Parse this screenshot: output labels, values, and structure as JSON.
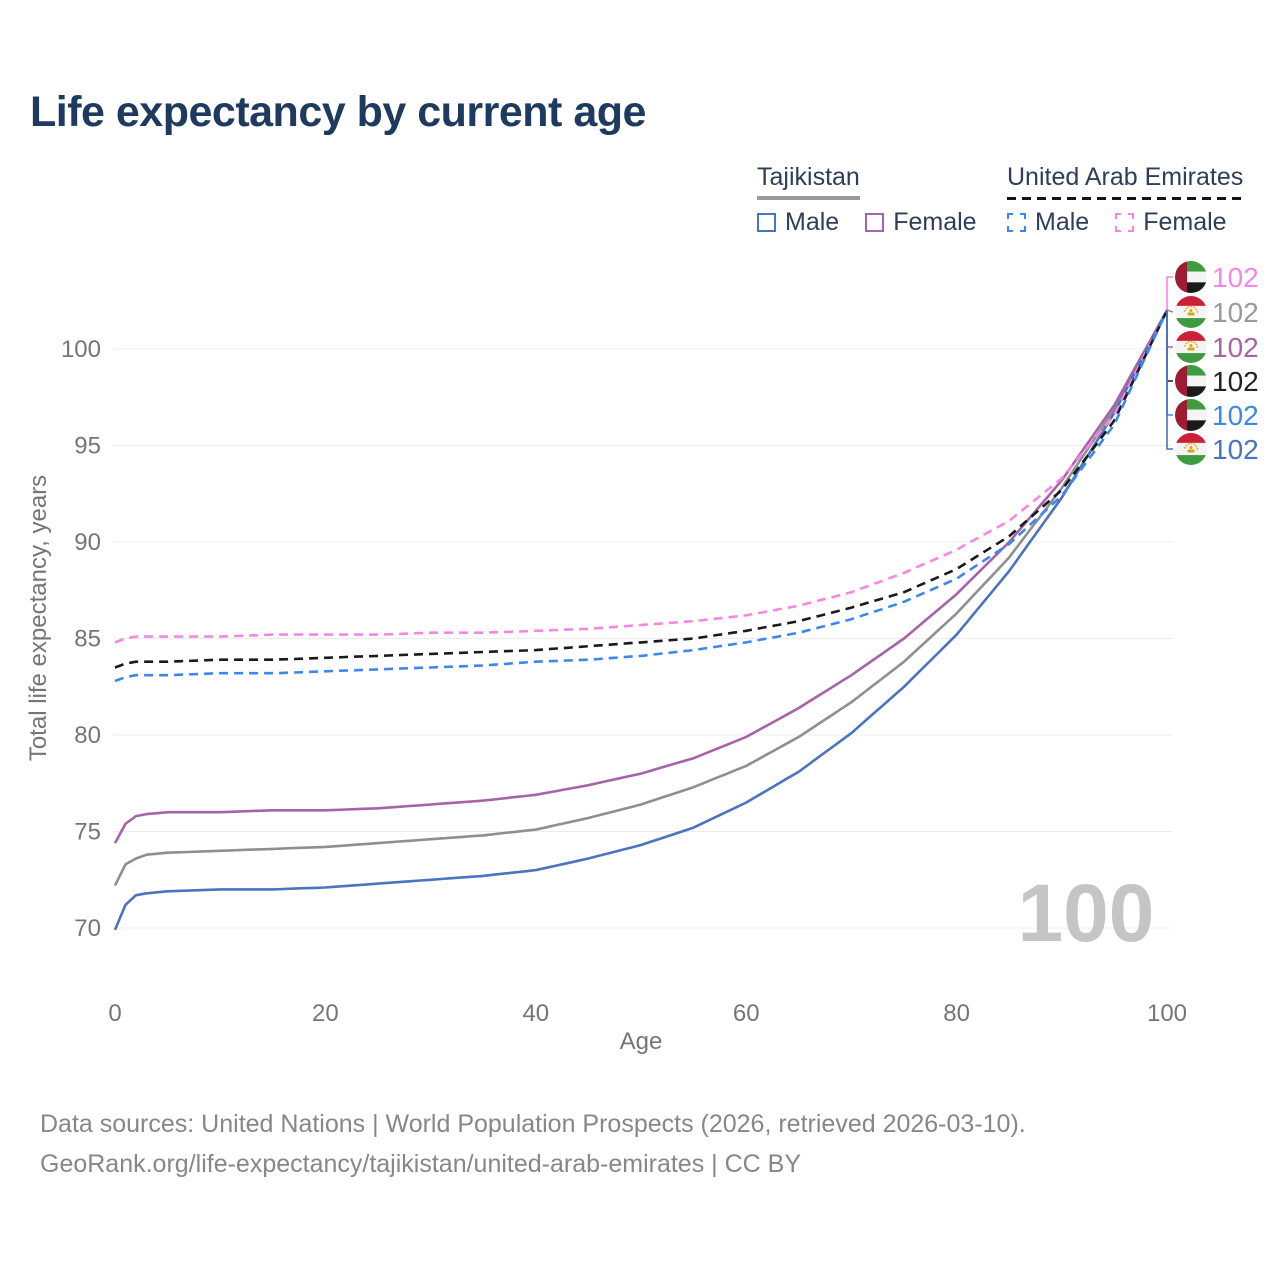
{
  "title": "Life expectancy by current age",
  "legend": {
    "tajikistan": {
      "label": "Tajikistan",
      "male_label": "Male",
      "female_label": "Female",
      "male_color": "#4a74bd",
      "female_color": "#a763a8",
      "line_style": "solid",
      "header_underline_color": "#9a9a9a"
    },
    "uae": {
      "label": "United Arab Emirates",
      "male_label": "Male",
      "female_label": "Female",
      "male_color": "#3b87f0",
      "female_color": "#f985e5",
      "line_style": "dashed",
      "header_underline_color": "#151515"
    }
  },
  "footer": {
    "line1": "Data sources: United Nations | World Population Prospects (2026, retrieved 2026-03-10).",
    "line2": "GeoRank.org/life-expectancy/tajikistan/united-arab-emirates | CC BY"
  },
  "chart_data": {
    "type": "line",
    "title": "Life expectancy by current age",
    "xlabel": "Age",
    "ylabel": "Total life expectancy, years",
    "x_ticks": [
      0,
      20,
      40,
      60,
      80,
      100
    ],
    "y_ticks": [
      70,
      75,
      80,
      85,
      90,
      95,
      100
    ],
    "xlim": [
      0,
      100
    ],
    "ylim": [
      69,
      103
    ],
    "grid": "horizontal",
    "watermark": "100",
    "ages": [
      0,
      1,
      2,
      3,
      5,
      10,
      15,
      20,
      25,
      30,
      35,
      40,
      45,
      50,
      55,
      60,
      65,
      70,
      75,
      80,
      85,
      90,
      95,
      100
    ],
    "series": [
      {
        "id": "uae-female",
        "name": "United Arab Emirates Female",
        "color": "#f985e5",
        "label_color": "#f985e5",
        "dash": true,
        "flag": "ae",
        "end_label": "102",
        "row": 0,
        "values": [
          84.8,
          85.0,
          85.1,
          85.1,
          85.1,
          85.1,
          85.2,
          85.2,
          85.2,
          85.3,
          85.3,
          85.4,
          85.5,
          85.7,
          85.9,
          86.2,
          86.7,
          87.4,
          88.4,
          89.6,
          91.1,
          93.3,
          96.6,
          102
        ]
      },
      {
        "id": "tj-all",
        "name": "Tajikistan Both sexes",
        "color": "#8f8f8f",
        "label_color": "#9a9a9a",
        "dash": false,
        "flag": "tj",
        "end_label": "102",
        "row": 1,
        "values": [
          72.2,
          73.3,
          73.6,
          73.8,
          73.9,
          74.0,
          74.1,
          74.2,
          74.4,
          74.6,
          74.8,
          75.1,
          75.7,
          76.4,
          77.3,
          78.4,
          79.9,
          81.7,
          83.8,
          86.3,
          89.2,
          92.8,
          96.9,
          102
        ]
      },
      {
        "id": "tj-female",
        "name": "Tajikistan Female",
        "color": "#a763a8",
        "label_color": "#a763a8",
        "dash": false,
        "flag": "tj",
        "end_label": "102",
        "row": 2,
        "values": [
          74.4,
          75.4,
          75.8,
          75.9,
          76.0,
          76.0,
          76.1,
          76.1,
          76.2,
          76.4,
          76.6,
          76.9,
          77.4,
          78.0,
          78.8,
          79.9,
          81.4,
          83.1,
          85.0,
          87.3,
          90.0,
          93.2,
          97.1,
          102
        ]
      },
      {
        "id": "uae-all",
        "name": "United Arab Emirates Both sexes",
        "color": "#1a1a1a",
        "label_color": "#222222",
        "dash": true,
        "flag": "ae",
        "end_label": "102",
        "row": 3,
        "values": [
          83.5,
          83.7,
          83.8,
          83.8,
          83.8,
          83.9,
          83.9,
          84.0,
          84.1,
          84.2,
          84.3,
          84.4,
          84.6,
          84.8,
          85.0,
          85.4,
          85.9,
          86.6,
          87.4,
          88.6,
          90.3,
          92.7,
          96.3,
          102
        ]
      },
      {
        "id": "uae-male",
        "name": "United Arab Emirates Male",
        "color": "#3b87f0",
        "label_color": "#3b87f0",
        "dash": true,
        "flag": "ae",
        "end_label": "102",
        "row": 4,
        "values": [
          82.8,
          83.0,
          83.1,
          83.1,
          83.1,
          83.2,
          83.2,
          83.3,
          83.4,
          83.5,
          83.6,
          83.8,
          83.9,
          84.1,
          84.4,
          84.8,
          85.3,
          86.0,
          86.9,
          88.1,
          89.9,
          92.4,
          96.1,
          102
        ]
      },
      {
        "id": "tj-male",
        "name": "Tajikistan Male",
        "color": "#4a74bd",
        "label_color": "#4a74bd",
        "dash": false,
        "flag": "tj",
        "end_label": "102",
        "row": 5,
        "values": [
          69.9,
          71.2,
          71.7,
          71.8,
          71.9,
          72.0,
          72.0,
          72.1,
          72.3,
          72.5,
          72.7,
          73.0,
          73.6,
          74.3,
          75.2,
          76.5,
          78.1,
          80.1,
          82.5,
          85.2,
          88.5,
          92.3,
          96.7,
          102
        ]
      }
    ]
  }
}
